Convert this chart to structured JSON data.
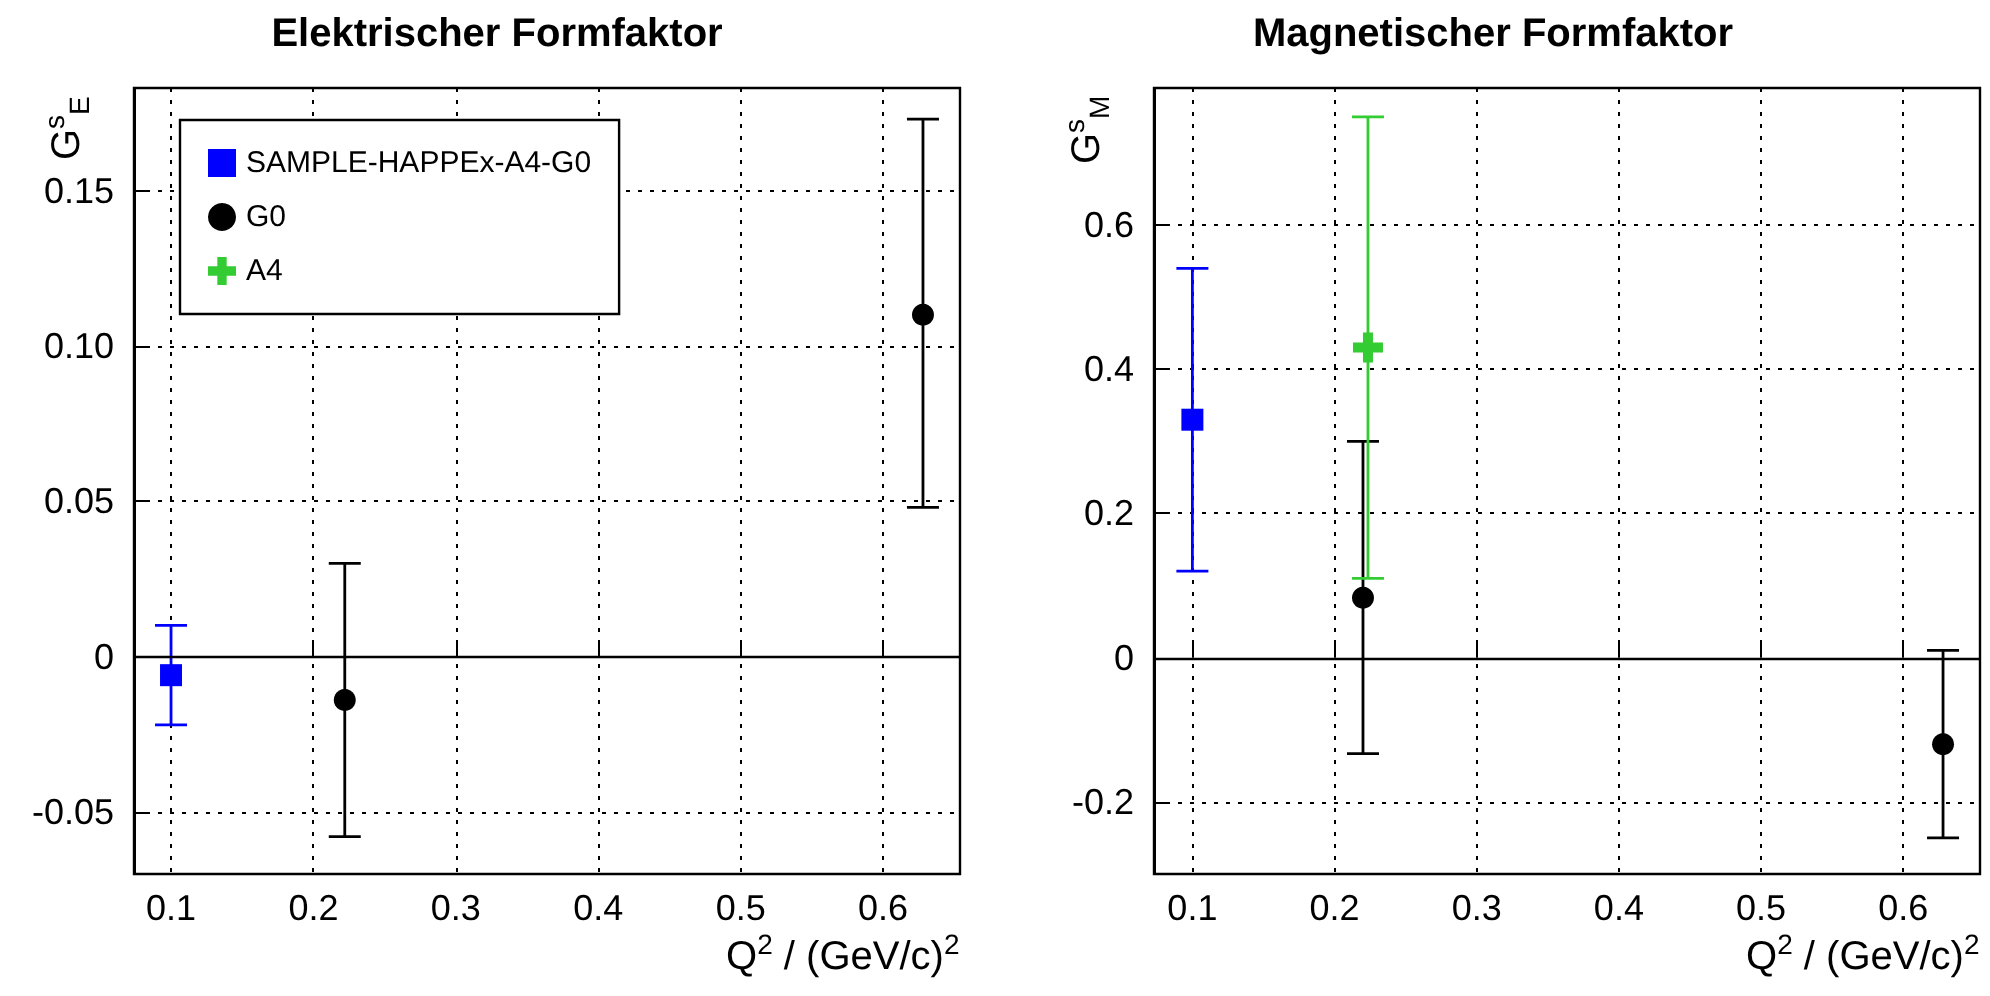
{
  "chart_data": [
    {
      "type": "scatter",
      "title": "Elektrischer Formfaktor",
      "xlabel": "Q$^{2}$ / (GeV/c)$^{2}$",
      "ylabel": "G$^{s}$$_{E}$",
      "xlim": [
        0.074,
        0.654
      ],
      "xticks": [
        0.1,
        0.2,
        0.3,
        0.4,
        0.5,
        0.6
      ],
      "ylim": [
        -0.07,
        0.183
      ],
      "yticks": [
        {
          "value": -0.05,
          "label": "-0.05"
        },
        0,
        {
          "value": 0.05,
          "label": "0.05"
        },
        {
          "value": 0.1,
          "label": "0.10"
        },
        {
          "value": 0.15,
          "label": "0.15"
        }
      ],
      "grid": true,
      "legend": "top left",
      "ref_lines": [
        {
          "axis": "y",
          "value": 0,
          "color": "#000000",
          "line_style": "solid"
        }
      ],
      "series": [
        {
          "name": "SAMPLE-HAPPEx-A4-G0",
          "color": "#0000ff",
          "marker": "square",
          "x": [
            0.1
          ],
          "values": [
            -0.006
          ],
          "errors": [
            [
              -0.022,
              0.01
            ]
          ]
        },
        {
          "name": "G0",
          "color": "#000000",
          "marker": "circle",
          "x": [
            0.222,
            0.628
          ],
          "values": [
            -0.014,
            0.11
          ],
          "errors": [
            [
              -0.058,
              0.03
            ],
            [
              0.048,
              0.173
            ]
          ]
        },
        {
          "name": "A4",
          "color": "#33cc33",
          "marker": "cross"
        }
      ]
    },
    {
      "type": "scatter",
      "title": "Magnetischer Formfaktor",
      "xlabel": "Q$^{2}$ / (GeV/c)$^{2}$",
      "ylabel": "G$^{s}$$_{M}$",
      "xlim": [
        0.073,
        0.654
      ],
      "xticks": [
        0.1,
        0.2,
        0.3,
        0.4,
        0.5,
        0.6
      ],
      "ylim": [
        -0.3,
        0.79
      ],
      "yticks": [
        -0.2,
        0,
        0.2,
        0.4,
        0.6
      ],
      "grid": true,
      "ref_lines": [
        {
          "axis": "y",
          "value": 0,
          "color": "#000000",
          "line_style": "solid"
        }
      ],
      "series": [
        {
          "color": "#0000ff",
          "marker": "square",
          "x": [
            0.1
          ],
          "values": [
            0.33
          ],
          "errors": [
            [
              0.12,
              0.54
            ]
          ]
        },
        {
          "color": "#000000",
          "marker": "circle",
          "x": [
            0.22,
            0.628
          ],
          "values": [
            0.083,
            -0.12
          ],
          "errors": [
            [
              -0.133,
              0.3
            ],
            [
              -0.25,
              0.01
            ]
          ]
        },
        {
          "color": "#33cc33",
          "marker": "cross",
          "x": [
            0.2235
          ],
          "values": [
            0.43
          ],
          "errors": [
            [
              0.11,
              0.75
            ]
          ]
        }
      ]
    }
  ]
}
